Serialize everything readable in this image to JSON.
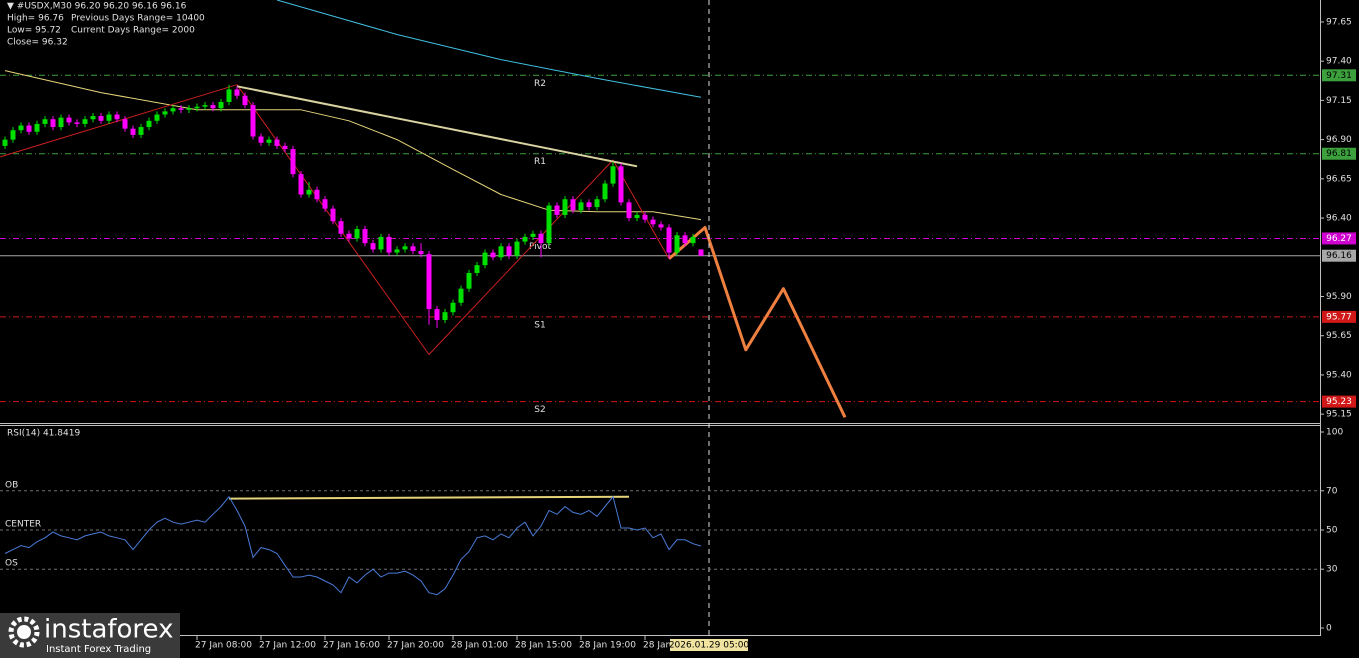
{
  "chart_data": [
    {
      "type": "candlestick",
      "info": [
        [
          "▼ #USDX,M30  96.20 96.20 96.16 96.16"
        ],
        [
          "High= 96.76",
          "Previous Days Range= 10400"
        ],
        [
          "Low= 95.72",
          "Current Days Range= 2000"
        ],
        [
          "Close= 96.32"
        ]
      ],
      "up_color": "#00e000",
      "down_color": "#ff00ff",
      "open": [
        96.86,
        96.9,
        96.96,
        96.99,
        96.95,
        97.0,
        97.03,
        96.98,
        97.04,
        97.01,
        97.0,
        97.03,
        97.05,
        97.02,
        97.06,
        97.03,
        96.97,
        96.93,
        96.98,
        97.02,
        97.06,
        97.08,
        97.1,
        97.09,
        97.1,
        97.11,
        97.12,
        97.1,
        97.14,
        97.22,
        97.18,
        97.12,
        96.92,
        96.88,
        96.9,
        96.86,
        96.84,
        96.68,
        96.55,
        96.58,
        96.52,
        96.46,
        96.38,
        96.3,
        96.27,
        96.33,
        96.24,
        96.2,
        96.28,
        96.18,
        96.2,
        96.22,
        96.19,
        96.17,
        95.82,
        95.75,
        95.8,
        95.86,
        95.95,
        96.05,
        96.1,
        96.18,
        96.15,
        96.22,
        96.16,
        96.25,
        96.28,
        96.3,
        96.24,
        96.48,
        96.42,
        96.52,
        96.45,
        96.5,
        96.47,
        96.52,
        96.62,
        96.73,
        96.5,
        96.4,
        96.42,
        96.39,
        96.36,
        96.34,
        96.18,
        96.29,
        96.24,
        96.2
      ],
      "high": [
        96.92,
        96.98,
        97.01,
        97.01,
        97.02,
        97.05,
        97.05,
        97.06,
        97.06,
        97.03,
        97.05,
        97.07,
        97.07,
        97.08,
        97.08,
        97.05,
        96.99,
        97.0,
        97.04,
        97.08,
        97.1,
        97.12,
        97.12,
        97.12,
        97.13,
        97.14,
        97.14,
        97.16,
        97.25,
        97.24,
        97.2,
        97.14,
        96.94,
        96.92,
        96.92,
        96.88,
        96.86,
        96.7,
        96.63,
        96.6,
        96.54,
        96.48,
        96.4,
        96.32,
        96.35,
        96.35,
        96.26,
        96.3,
        96.3,
        96.22,
        96.24,
        96.24,
        96.24,
        96.19,
        95.84,
        95.82,
        95.88,
        95.97,
        96.07,
        96.12,
        96.2,
        96.2,
        96.24,
        96.24,
        96.27,
        96.3,
        96.32,
        96.32,
        96.5,
        96.5,
        96.54,
        96.54,
        96.52,
        96.52,
        96.54,
        96.64,
        96.76,
        96.75,
        96.52,
        96.44,
        96.44,
        96.41,
        96.38,
        96.36,
        96.31,
        96.31,
        96.3,
        96.2
      ],
      "low": [
        96.84,
        96.88,
        96.94,
        96.93,
        96.93,
        96.98,
        96.96,
        96.96,
        96.99,
        96.98,
        96.98,
        97.01,
        97.0,
        97.0,
        97.01,
        96.95,
        96.91,
        96.91,
        96.96,
        97.0,
        97.04,
        97.06,
        97.07,
        97.07,
        97.08,
        97.09,
        97.08,
        97.08,
        97.12,
        97.16,
        97.1,
        96.9,
        96.86,
        96.86,
        96.84,
        96.82,
        96.66,
        96.53,
        96.53,
        96.5,
        96.44,
        96.36,
        96.28,
        96.25,
        96.25,
        96.22,
        96.18,
        96.18,
        96.16,
        96.16,
        96.18,
        96.17,
        96.15,
        95.72,
        95.7,
        95.73,
        95.78,
        95.84,
        95.93,
        96.03,
        96.08,
        96.13,
        96.13,
        96.14,
        96.14,
        96.23,
        96.26,
        96.15,
        96.22,
        96.4,
        96.4,
        96.43,
        96.43,
        96.45,
        96.45,
        96.5,
        96.6,
        96.48,
        96.38,
        96.38,
        96.37,
        96.34,
        96.32,
        96.14,
        96.16,
        96.22,
        96.22,
        96.16
      ],
      "close": [
        96.9,
        96.96,
        96.99,
        96.95,
        97.0,
        97.03,
        96.98,
        97.04,
        97.01,
        97.0,
        97.03,
        97.05,
        97.02,
        97.06,
        97.03,
        96.97,
        96.93,
        96.98,
        97.02,
        97.06,
        97.08,
        97.1,
        97.09,
        97.1,
        97.11,
        97.12,
        97.1,
        97.14,
        97.22,
        97.18,
        97.12,
        96.92,
        96.88,
        96.9,
        96.86,
        96.84,
        96.68,
        96.55,
        96.58,
        96.52,
        96.46,
        96.38,
        96.3,
        96.27,
        96.33,
        96.24,
        96.2,
        96.28,
        96.18,
        96.2,
        96.22,
        96.19,
        96.17,
        95.82,
        95.75,
        95.8,
        95.86,
        95.95,
        96.05,
        96.1,
        96.18,
        96.15,
        96.22,
        96.16,
        96.25,
        96.28,
        96.3,
        96.24,
        96.48,
        96.42,
        96.52,
        96.45,
        96.5,
        96.47,
        96.52,
        96.62,
        96.73,
        96.5,
        96.4,
        96.42,
        96.39,
        96.36,
        96.34,
        96.18,
        96.29,
        96.24,
        96.28,
        96.16
      ],
      "xlim": [
        -0.625,
        164.375
      ],
      "ylim": [
        95.1,
        97.79
      ],
      "yticks": [
        {
          "value": 97.65,
          "label": "97.65"
        },
        {
          "value": 97.4,
          "label": "97.40"
        },
        {
          "value": 97.15,
          "label": "97.15"
        },
        {
          "value": 96.9,
          "label": "96.90"
        },
        {
          "value": 96.65,
          "label": "96.65"
        },
        {
          "value": 96.4,
          "label": "96.40"
        },
        {
          "value": 95.9,
          "label": "95.90"
        },
        {
          "value": 95.65,
          "label": "95.65"
        },
        {
          "value": 95.4,
          "label": "95.40"
        },
        {
          "value": 95.15,
          "label": "95.15"
        }
      ],
      "xticks": [
        {
          "value": 24,
          "label": "27 Jan 08:00"
        },
        {
          "value": 32,
          "label": "27 Jan 12:00"
        },
        {
          "value": 40,
          "label": "27 Jan 16:00"
        },
        {
          "value": 48,
          "label": "27 Jan 20:00"
        },
        {
          "value": 56,
          "label": "28 Jan 01:00"
        },
        {
          "value": 64,
          "label": "28 Jan 15:00"
        },
        {
          "value": 72,
          "label": "28 Jan 19:00"
        },
        {
          "value": 80,
          "label": "28 Jan"
        }
      ],
      "cursor": {
        "value": 88,
        "label": "2026.01.29 05:00"
      },
      "levels": [
        {
          "name": "R2",
          "value": 97.31,
          "color": "#3ca03c",
          "text_color": "#000"
        },
        {
          "name": "R1",
          "value": 96.81,
          "color": "#3ca03c",
          "text_color": "#000"
        },
        {
          "name": "Pivot",
          "value": 96.27,
          "color": "#d000d0",
          "text_color": "#fff"
        },
        {
          "value": 96.16,
          "color": "#a8a8a8",
          "text_color": "#000",
          "solid": true
        },
        {
          "name": "S1",
          "value": 95.77,
          "color": "#d01818",
          "text_color": "#fff"
        },
        {
          "name": "S2",
          "value": 95.23,
          "color": "#d01818",
          "text_color": "#fff"
        }
      ],
      "overlays": [
        {
          "color": "#e6d47a",
          "width": 1,
          "x": [
            0,
            12,
            24,
            37,
            43,
            49,
            56,
            62,
            68,
            74,
            81,
            87
          ],
          "values": [
            97.34,
            97.2,
            97.09,
            97.09,
            97.02,
            96.9,
            96.71,
            96.55,
            96.45,
            96.44,
            96.44,
            96.39
          ]
        },
        {
          "color": "#40c0e0",
          "width": 1,
          "x": [
            34,
            49,
            62,
            74,
            87
          ],
          "values": [
            97.79,
            97.57,
            97.41,
            97.29,
            97.17
          ]
        },
        {
          "color": "#cc2020",
          "width": 1,
          "x": [
            -0.6,
            29,
            53,
            76,
            83
          ],
          "values": [
            96.79,
            97.25,
            95.53,
            96.77,
            96.14
          ]
        },
        {
          "color": "#d8d2a0",
          "width": 2,
          "x": [
            29,
            79
          ],
          "values": [
            97.24,
            96.73
          ]
        },
        {
          "color": "#f08040",
          "width": 3,
          "x": [
            83,
            87.5,
            92.6,
            97.3,
            105
          ],
          "values": [
            96.14,
            96.34,
            95.56,
            95.95,
            95.13
          ]
        }
      ]
    },
    {
      "type": "line",
      "title": "RSI(14) 41.8419",
      "color": "#4a7bd8",
      "values": [
        38,
        40,
        42,
        41,
        44,
        46,
        49,
        47,
        46,
        45,
        47,
        48,
        49,
        47,
        46,
        45,
        40,
        45,
        50,
        54,
        56,
        54,
        53,
        54,
        55,
        54,
        58,
        62,
        67,
        60,
        52,
        36,
        41,
        40,
        38,
        32,
        26,
        26,
        27,
        26,
        24,
        22,
        18,
        26,
        23,
        27,
        30,
        26,
        28,
        28,
        29,
        27,
        24,
        18,
        17,
        20,
        27,
        35,
        39,
        46,
        47,
        45,
        48,
        46,
        51,
        54,
        47,
        52,
        60,
        58,
        62,
        59,
        58,
        60,
        57,
        62,
        67,
        51,
        51,
        50,
        51,
        46,
        48,
        40,
        45,
        45,
        43,
        41.8419
      ],
      "xlim": [
        -0.625,
        164.375
      ],
      "ylim": [
        0,
        100
      ],
      "yticks": [
        0,
        30,
        50,
        70,
        100
      ],
      "levels": [
        {
          "name": "OB",
          "value": 70
        },
        {
          "name": "CENTER",
          "value": 50
        },
        {
          "name": "OS",
          "value": 30
        }
      ],
      "overlays": [
        {
          "color": "#e6d47a",
          "width": 2,
          "x": [
            28,
            78
          ],
          "values": [
            66,
            67
          ]
        }
      ]
    }
  ],
  "logo": {
    "name": "instaforex",
    "tagline": "Instant Forex Trading"
  }
}
